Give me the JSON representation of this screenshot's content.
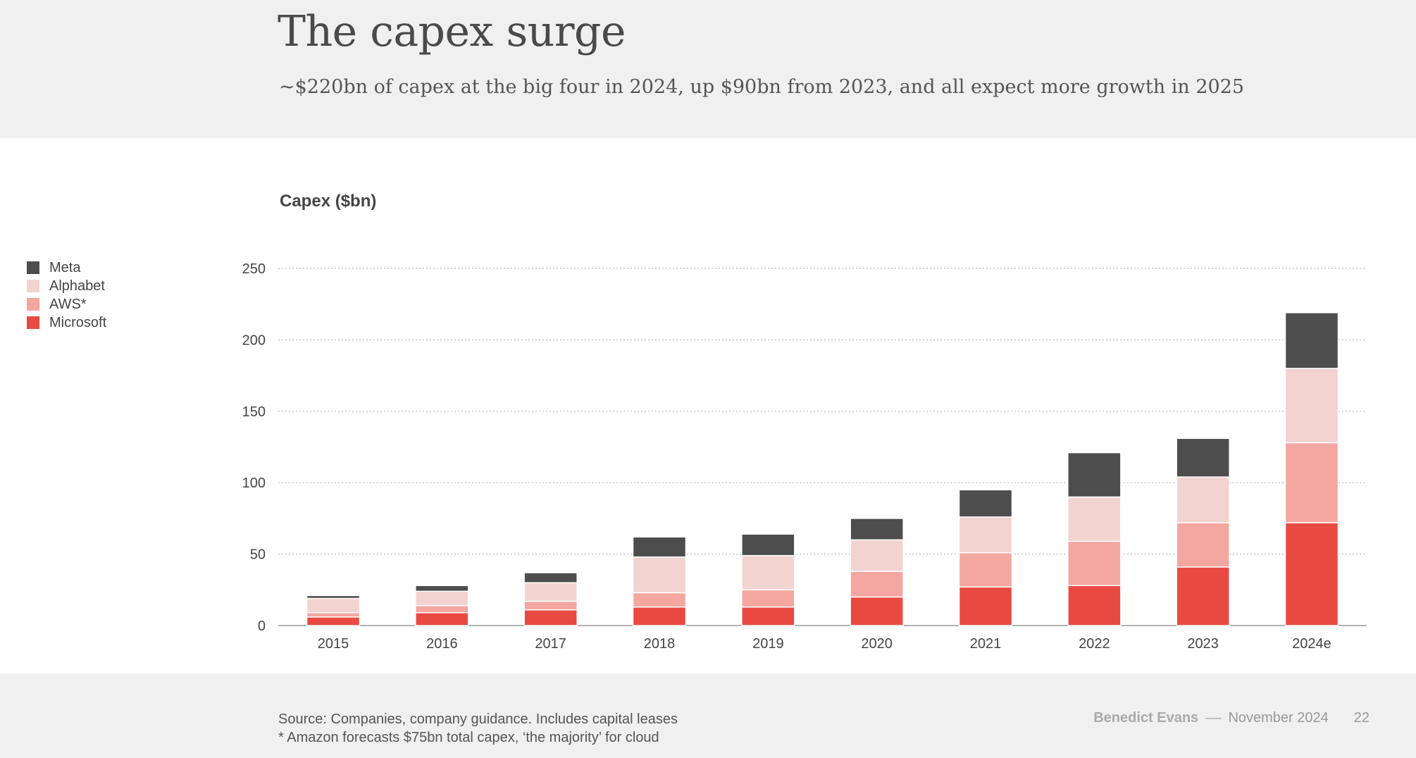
{
  "header": {
    "title": "The capex surge",
    "subtitle": "~$220bn of capex at the big four in 2024, up $90bn from 2023, and all expect more growth in 2025"
  },
  "footer": {
    "source": "Source: Companies, company guidance. Includes capital leases",
    "note": "* Amazon forecasts $75bn total capex, ‘the majority’ for cloud",
    "author": "Benedict Evans",
    "dash": "––",
    "date": "November 2024",
    "page": "22"
  },
  "chart_data": {
    "type": "bar",
    "stacked": true,
    "ylabel": "Capex ($bn)",
    "xlabel": "",
    "ylim": [
      0,
      250
    ],
    "yticks": [
      0,
      50,
      100,
      150,
      200,
      250
    ],
    "grid": true,
    "legend_position": "left",
    "categories": [
      "2015",
      "2016",
      "2017",
      "2018",
      "2019",
      "2020",
      "2021",
      "2022",
      "2023",
      "2024e"
    ],
    "series": [
      {
        "name": "Microsoft",
        "color": "#e84a42",
        "values": [
          6,
          9,
          11,
          13,
          13,
          20,
          27,
          28,
          41,
          72
        ]
      },
      {
        "name": "AWS*",
        "color": "#f4a6a0",
        "values": [
          3,
          5,
          6,
          10,
          12,
          18,
          24,
          31,
          31,
          56
        ]
      },
      {
        "name": "Alphabet",
        "color": "#f2d3d0",
        "values": [
          10,
          10,
          13,
          25,
          24,
          22,
          25,
          31,
          32,
          52
        ]
      },
      {
        "name": "Meta",
        "color": "#4d4d4d",
        "values": [
          2,
          4,
          7,
          14,
          15,
          15,
          19,
          31,
          27,
          39
        ]
      }
    ],
    "legend_order": [
      "Meta",
      "Alphabet",
      "AWS*",
      "Microsoft"
    ]
  }
}
